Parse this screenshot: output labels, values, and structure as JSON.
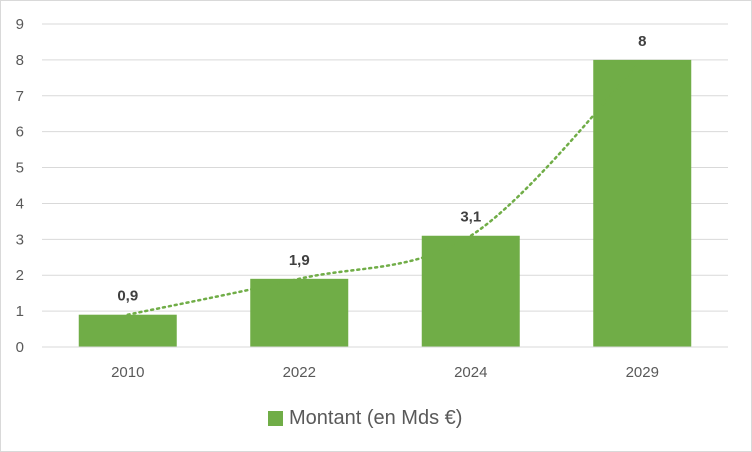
{
  "chart_data": {
    "type": "bar",
    "categories": [
      "2010",
      "2022",
      "2024",
      "2029"
    ],
    "series": [
      {
        "name": "Montant (en Mds €)",
        "values": [
          0.9,
          1.9,
          3.1,
          8
        ],
        "color": "#70ad47"
      }
    ],
    "data_labels": [
      "0,9",
      "1,9",
      "3,1",
      "8"
    ],
    "y_ticks": [
      "0",
      "1",
      "2",
      "3",
      "4",
      "5",
      "6",
      "7",
      "8",
      "9"
    ],
    "ylim": [
      0,
      9
    ],
    "grid": true,
    "trendline": {
      "type": "exponential",
      "style": "dotted",
      "color": "#70ad47"
    },
    "legend_position": "bottom"
  }
}
